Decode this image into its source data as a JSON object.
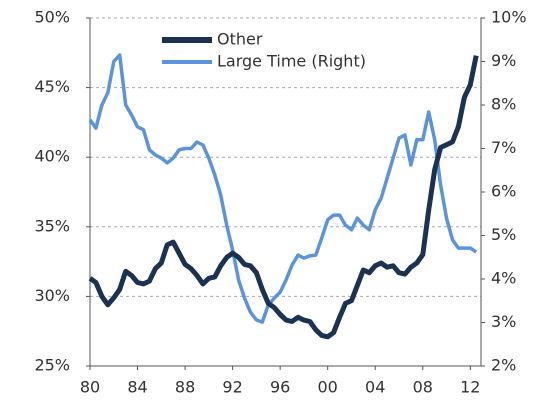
{
  "chart_data": {
    "type": "line",
    "x": [
      1980,
      1980.5,
      1981,
      1981.5,
      1982,
      1982.5,
      1983,
      1983.5,
      1984,
      1984.5,
      1985,
      1985.5,
      1986,
      1986.5,
      1987,
      1987.5,
      1988,
      1988.5,
      1989,
      1989.5,
      1990,
      1990.5,
      1991,
      1991.5,
      1992,
      1992.5,
      1993,
      1993.5,
      1994,
      1994.5,
      1995,
      1995.5,
      1996,
      1996.5,
      1997,
      1997.5,
      1998,
      1998.5,
      1999,
      1999.5,
      2000,
      2000.5,
      2001,
      2001.5,
      2002,
      2002.5,
      2003,
      2003.5,
      2004,
      2004.5,
      2005,
      2005.5,
      2006,
      2006.5,
      2007,
      2007.5,
      2008,
      2008.5,
      2009,
      2009.5,
      2010,
      2010.5,
      2011,
      2011.5,
      2012,
      2012.5
    ],
    "series": [
      {
        "name": "Other",
        "color": "#1b3252",
        "values": [
          31.3,
          31.0,
          30.0,
          29.4,
          29.9,
          30.5,
          31.8,
          31.5,
          31.0,
          30.9,
          31.1,
          32.0,
          32.4,
          33.7,
          33.9,
          33.1,
          32.3,
          32.0,
          31.5,
          30.9,
          31.3,
          31.4,
          32.2,
          32.8,
          33.1,
          32.8,
          32.3,
          32.2,
          31.7,
          30.5,
          29.5,
          29.2,
          28.7,
          28.3,
          28.2,
          28.5,
          28.3,
          28.2,
          27.6,
          27.2,
          27.1,
          27.4,
          28.5,
          29.5,
          29.7,
          30.8,
          31.9,
          31.7,
          32.2,
          32.4,
          32.1,
          32.2,
          31.7,
          31.6,
          32.1,
          32.4,
          33.0,
          36.2,
          39.1,
          40.7,
          40.9,
          41.1,
          42.2,
          44.3,
          45.2,
          47.3
        ]
      },
      {
        "name": "Large Time (Right)",
        "color": "#5b93dc",
        "axis": "y2",
        "values": [
          7.66,
          7.47,
          8.0,
          8.28,
          9.0,
          9.15,
          8.0,
          7.77,
          7.5,
          7.43,
          6.97,
          6.85,
          6.78,
          6.67,
          6.78,
          6.97,
          7.0,
          7.0,
          7.15,
          7.08,
          6.78,
          6.39,
          5.93,
          5.24,
          4.67,
          3.98,
          3.56,
          3.24,
          3.06,
          3.01,
          3.4,
          3.56,
          3.7,
          3.98,
          4.32,
          4.55,
          4.48,
          4.53,
          4.55,
          4.94,
          5.36,
          5.47,
          5.47,
          5.24,
          5.13,
          5.4,
          5.24,
          5.13,
          5.59,
          5.86,
          6.32,
          6.78,
          7.24,
          7.31,
          6.62,
          7.2,
          7.2,
          7.84,
          7.2,
          6.16,
          5.4,
          4.9,
          4.71,
          4.71,
          4.71,
          4.62
        ]
      }
    ],
    "xlim": [
      1980,
      2012.9
    ],
    "xticks": [
      {
        "value": 1980,
        "label": "80"
      },
      {
        "value": 1984,
        "label": "84"
      },
      {
        "value": 1988,
        "label": "88"
      },
      {
        "value": 1992,
        "label": "92"
      },
      {
        "value": 1996,
        "label": "96"
      },
      {
        "value": 2000,
        "label": "00"
      },
      {
        "value": 2004,
        "label": "04"
      },
      {
        "value": 2008,
        "label": "08"
      },
      {
        "value": 2012,
        "label": "12"
      }
    ],
    "ylim": [
      25,
      50
    ],
    "yticks": [
      {
        "value": 25,
        "label": "25%"
      },
      {
        "value": 30,
        "label": "30%"
      },
      {
        "value": 35,
        "label": "35%"
      },
      {
        "value": 40,
        "label": "40%"
      },
      {
        "value": 45,
        "label": "45%"
      },
      {
        "value": 50,
        "label": "50%"
      }
    ],
    "y2lim": [
      2,
      10
    ],
    "y2ticks": [
      {
        "value": 2,
        "label": "2%"
      },
      {
        "value": 3,
        "label": "3%"
      },
      {
        "value": 4,
        "label": "4%"
      },
      {
        "value": 5,
        "label": "5%"
      },
      {
        "value": 6,
        "label": "6%"
      },
      {
        "value": 7,
        "label": "7%"
      },
      {
        "value": 8,
        "label": "8%"
      },
      {
        "value": 9,
        "label": "9%"
      },
      {
        "value": 10,
        "label": "10%"
      }
    ],
    "grid": true,
    "legend": "top"
  }
}
